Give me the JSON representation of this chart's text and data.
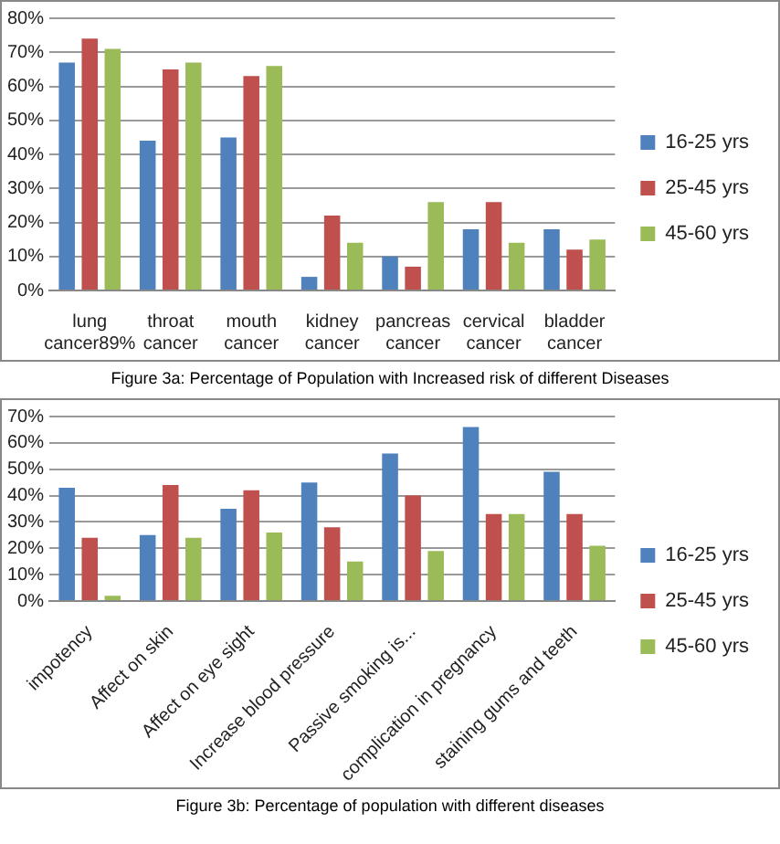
{
  "chart_data": [
    {
      "type": "bar",
      "categories": [
        "lung cancer89%",
        "throat cancer",
        "mouth cancer",
        "kidney cancer",
        "pancreas cancer",
        "cervical cancer",
        "bladder cancer"
      ],
      "series": [
        {
          "name": "16-25 yrs",
          "color": "#4f81bd",
          "values": [
            67,
            44,
            45,
            4,
            10,
            18,
            18
          ]
        },
        {
          "name": "25-45 yrs",
          "color": "#c0504d",
          "values": [
            74,
            65,
            63,
            22,
            7,
            26,
            12
          ]
        },
        {
          "name": "45-60 yrs",
          "color": "#9bbb59",
          "values": [
            71,
            67,
            66,
            14,
            26,
            14,
            15
          ]
        }
      ],
      "ylim": [
        0,
        80
      ],
      "yticks": [
        {
          "value": 0,
          "label": "0%"
        },
        {
          "value": 10,
          "label": "10%"
        },
        {
          "value": 20,
          "label": "20%"
        },
        {
          "value": 30,
          "label": "30%"
        },
        {
          "value": 40,
          "label": "40%"
        },
        {
          "value": 50,
          "label": "50%"
        },
        {
          "value": 60,
          "label": "60%"
        },
        {
          "value": 70,
          "label": "70%"
        },
        {
          "value": 80,
          "label": "80%"
        }
      ],
      "grid": "y",
      "legend": "right",
      "annotations": [
        "Figure 3a: Percentage of Population with Increased risk of different Diseases"
      ]
    },
    {
      "type": "bar",
      "categories": [
        "impotency",
        "Affect on skin",
        "Affect on eye sight",
        "Increase blood pressure",
        "Passive smoking is...",
        "complication in pregnancy",
        "staining gums and teeth"
      ],
      "series": [
        {
          "name": "16-25 yrs",
          "color": "#4f81bd",
          "values": [
            43,
            25,
            35,
            45,
            56,
            66,
            49
          ]
        },
        {
          "name": "25-45 yrs",
          "color": "#c0504d",
          "values": [
            24,
            44,
            42,
            28,
            40,
            33,
            33
          ]
        },
        {
          "name": "45-60 yrs",
          "color": "#9bbb59",
          "values": [
            2,
            24,
            26,
            15,
            19,
            33,
            21
          ]
        }
      ],
      "ylim": [
        0,
        70
      ],
      "yticks": [
        {
          "value": 0,
          "label": "0%"
        },
        {
          "value": 10,
          "label": "10%"
        },
        {
          "value": 20,
          "label": "20%"
        },
        {
          "value": 30,
          "label": "30%"
        },
        {
          "value": 40,
          "label": "40%"
        },
        {
          "value": 50,
          "label": "50%"
        },
        {
          "value": 60,
          "label": "60%"
        },
        {
          "value": 70,
          "label": "70%"
        }
      ],
      "grid": "y",
      "legend": "right",
      "annotations": [
        "Figure 3b: Percentage of population with different diseases"
      ]
    }
  ]
}
